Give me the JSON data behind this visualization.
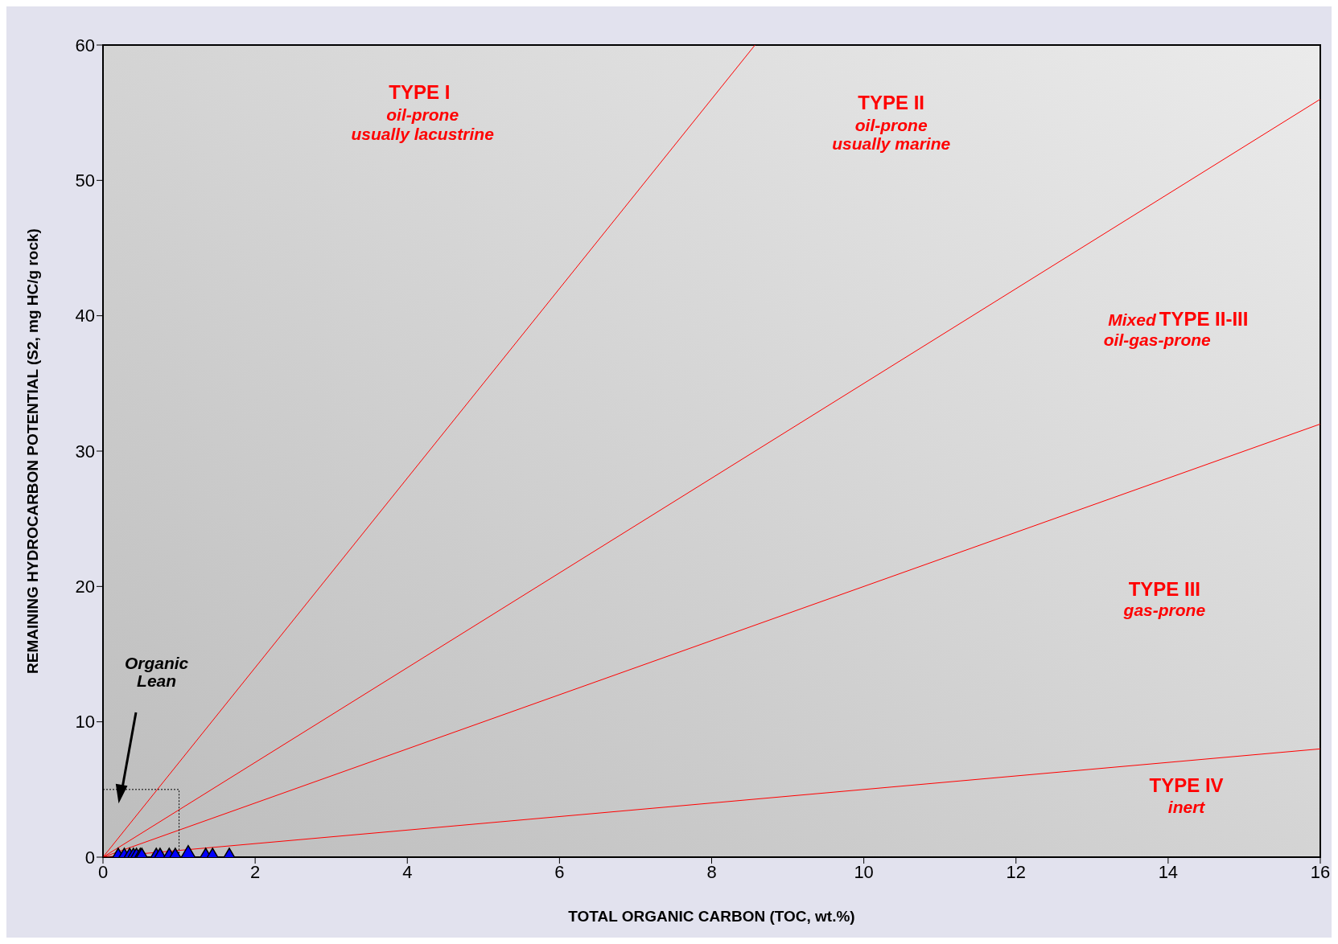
{
  "chart_data": {
    "type": "scatter",
    "xlabel": "TOTAL ORGANIC CARBON (TOC, wt.%)",
    "ylabel": "REMAINING HYDROCARBON POTENTIAL (S2, mg HC/g  rock)",
    "xlim": [
      0,
      16
    ],
    "xticks": [
      0,
      2,
      4,
      6,
      8,
      10,
      12,
      14,
      16
    ],
    "ylim": [
      0,
      60
    ],
    "yticks": [
      0,
      10,
      20,
      30,
      40,
      50,
      60
    ],
    "marker": "triangle",
    "series": [
      {
        "color": "#0000ff",
        "x": [
          0.2,
          0.28,
          0.35,
          0.4,
          0.44,
          0.49,
          0.51,
          0.7,
          0.75,
          0.87,
          0.95,
          1.12,
          1.35,
          1.44,
          1.66
        ],
        "values": [
          0,
          0,
          0,
          0,
          0,
          0,
          0,
          0,
          0,
          0,
          0,
          0.2,
          0,
          0,
          0
        ]
      },
      {
        "type": "line",
        "color": "#ff0000",
        "line_style": "solid",
        "marker": "none",
        "x": [
          0,
          8.57
        ],
        "values": [
          0,
          60
        ]
      },
      {
        "type": "line",
        "color": "#ff0000",
        "line_style": "solid",
        "marker": "none",
        "x": [
          0,
          16
        ],
        "values": [
          0,
          56
        ]
      },
      {
        "type": "line",
        "color": "#ff0000",
        "line_style": "solid",
        "marker": "none",
        "x": [
          0,
          16
        ],
        "values": [
          0,
          32
        ]
      },
      {
        "type": "line",
        "color": "#ff0000",
        "line_style": "solid",
        "marker": "none",
        "x": [
          0,
          16
        ],
        "values": [
          0,
          8
        ]
      },
      {
        "type": "line",
        "color": "#000000",
        "line_style": "dotted",
        "marker": "none",
        "x": [
          0,
          1,
          1
        ],
        "values": [
          5,
          5,
          0
        ]
      }
    ],
    "annotations": [
      "TYPE I",
      "oil-prone",
      "usually lacustrine",
      "TYPE II",
      "oil-prone",
      "usually marine",
      "Mixed",
      "TYPE II-III",
      "oil-gas-prone",
      "TYPE III",
      "gas-prone",
      "TYPE IV",
      "inert",
      "Organic",
      "Lean"
    ]
  }
}
